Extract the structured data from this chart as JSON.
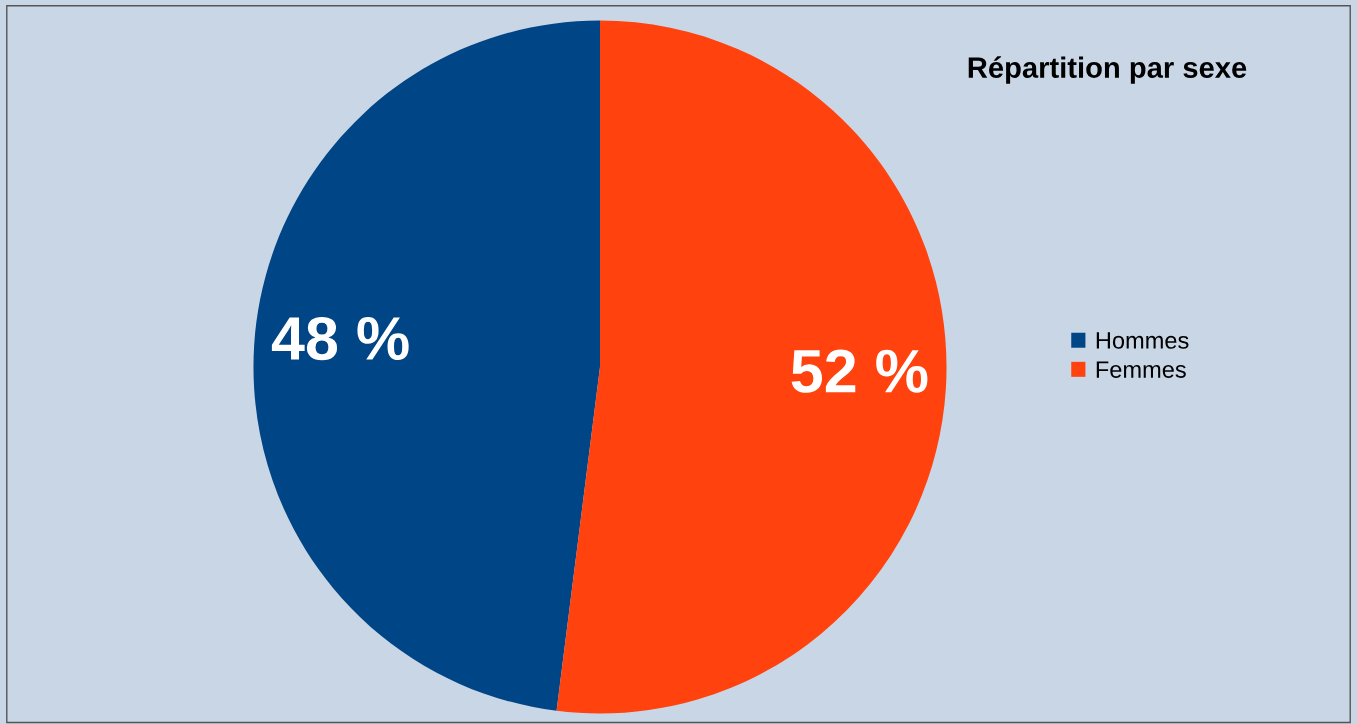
{
  "chart_data": {
    "type": "pie",
    "title": "Répartition par sexe",
    "categories": [
      "Hommes",
      "Femmes"
    ],
    "values": [
      48,
      52
    ],
    "colors": [
      "#004586",
      "#ff420e"
    ],
    "value_labels": [
      "48 %",
      "52 %"
    ],
    "legend": "right"
  }
}
